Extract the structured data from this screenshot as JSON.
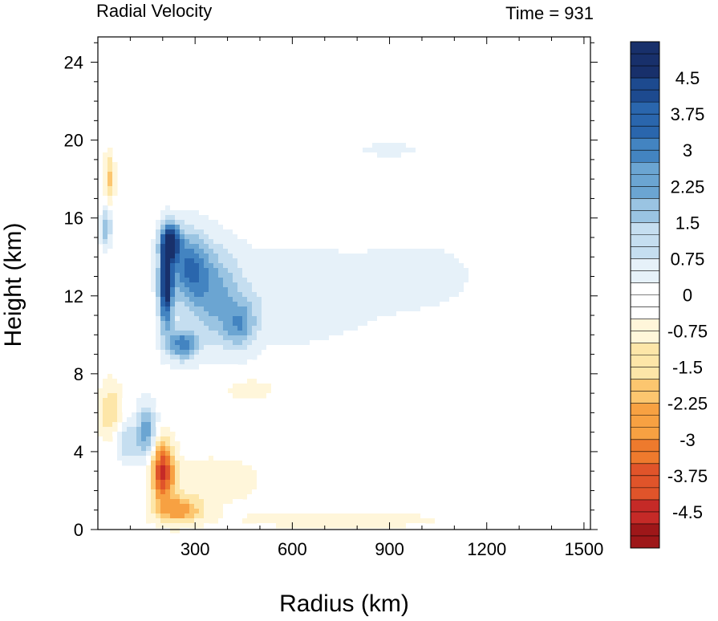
{
  "chart_data": {
    "type": "heatmap",
    "title_left": "Radial Velocity",
    "title_right": "Time = 931",
    "xlabel": "Radius (km)",
    "ylabel": "Height (km)",
    "xlim": [
      0,
      1520
    ],
    "ylim": [
      0,
      25.3
    ],
    "x_ticks": [
      300,
      600,
      900,
      1200,
      1500
    ],
    "x_tick_labels": [
      "300",
      "600",
      "900",
      "1200",
      "1500"
    ],
    "y_ticks": [
      0,
      4,
      8,
      12,
      16,
      20,
      24
    ],
    "y_tick_labels": [
      "0",
      "4",
      "8",
      "12",
      "16",
      "20",
      "24"
    ],
    "colorbar": {
      "min": -5.25,
      "max": 5.25,
      "step": 0.25,
      "tick_values": [
        4.5,
        3.75,
        3,
        2.25,
        1.5,
        0.75,
        0,
        -0.75,
        -1.5,
        -2.25,
        -3,
        -3.75,
        -4.5
      ],
      "tick_labels": [
        "4.5",
        "3.75",
        "3",
        "2.25",
        "1.5",
        "0.75",
        "0",
        "-0.75",
        "-1.5",
        "-2.25",
        "-3",
        "-3.75",
        "-4.5"
      ],
      "colors": [
        "#18306b",
        "#1d4a8f",
        "#2a66ad",
        "#4384c1",
        "#6ba5d2",
        "#9ac4e2",
        "#c5def0",
        "#e6f1f9",
        "#ffffff",
        "#fff6da",
        "#fde6a8",
        "#fcc66f",
        "#f7a142",
        "#ee7a2d",
        "#e0542a",
        "#c52a27",
        "#9e1719"
      ]
    },
    "features": [
      {
        "r": 210,
        "z": 12.5,
        "value": 4.8,
        "sr": 22,
        "sz": 2.2
      },
      {
        "r": 225,
        "z": 14.8,
        "value": 4.5,
        "sr": 30,
        "sz": 0.9
      },
      {
        "r": 280,
        "z": 13.5,
        "value": 3.0,
        "sr": 60,
        "sz": 1.8
      },
      {
        "r": 260,
        "z": 9.5,
        "value": 3.0,
        "sr": 45,
        "sz": 0.8
      },
      {
        "r": 360,
        "z": 12.0,
        "value": 2.0,
        "sr": 80,
        "sz": 2.5
      },
      {
        "r": 440,
        "z": 10.5,
        "value": 2.0,
        "sr": 50,
        "sz": 1.2
      },
      {
        "r": 600,
        "z": 12.0,
        "value": 0.8,
        "sr": 250,
        "sz": 2.5
      },
      {
        "r": 1000,
        "z": 13.0,
        "value": 0.5,
        "sr": 200,
        "sz": 2.0
      },
      {
        "r": 150,
        "z": 5.0,
        "value": 2.5,
        "sr": 30,
        "sz": 1.4
      },
      {
        "r": 90,
        "z": 4.5,
        "value": 1.5,
        "sr": 40,
        "sz": 1.0
      },
      {
        "r": 25,
        "z": 15.5,
        "value": 2.2,
        "sr": 15,
        "sz": 1.0
      },
      {
        "r": 200,
        "z": 3.0,
        "value": -4.2,
        "sr": 35,
        "sz": 1.5
      },
      {
        "r": 250,
        "z": 1.0,
        "value": -2.5,
        "sr": 70,
        "sz": 0.7
      },
      {
        "r": 350,
        "z": 2.5,
        "value": -0.8,
        "sr": 150,
        "sz": 1.2
      },
      {
        "r": 750,
        "z": 0.5,
        "value": -0.6,
        "sr": 350,
        "sz": 0.5
      },
      {
        "r": 40,
        "z": 6.0,
        "value": -1.5,
        "sr": 35,
        "sz": 1.5
      },
      {
        "r": 35,
        "z": 18.0,
        "value": -1.8,
        "sr": 15,
        "sz": 1.3
      },
      {
        "r": 470,
        "z": 7.2,
        "value": -0.6,
        "sr": 90,
        "sz": 0.6
      },
      {
        "r": 900,
        "z": 19.5,
        "value": 0.4,
        "sr": 150,
        "sz": 0.6
      }
    ]
  }
}
